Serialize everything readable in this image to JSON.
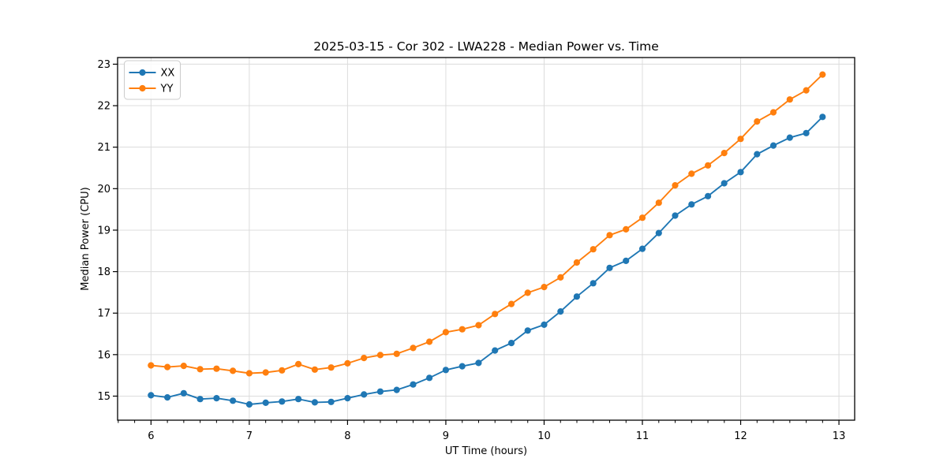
{
  "chart_data": {
    "type": "line",
    "title": "2025-03-15 - Cor 302 - LWA228 - Median Power vs. Time",
    "xlabel": "UT Time (hours)",
    "ylabel": "Median Power (CPU)",
    "x": [
      6.0,
      6.167,
      6.333,
      6.5,
      6.667,
      6.833,
      7.0,
      7.167,
      7.333,
      7.5,
      7.667,
      7.833,
      8.0,
      8.167,
      8.333,
      8.5,
      8.667,
      8.833,
      9.0,
      9.167,
      9.333,
      9.5,
      9.667,
      9.833,
      10.0,
      10.167,
      10.333,
      10.5,
      10.667,
      10.833,
      11.0,
      11.167,
      11.333,
      11.5,
      11.667,
      11.833,
      12.0,
      12.167,
      12.333,
      12.5,
      12.667,
      12.833
    ],
    "series": [
      {
        "name": "XX",
        "color": "#1f77b4",
        "values": [
          15.02,
          14.97,
          15.07,
          14.93,
          14.95,
          14.89,
          14.8,
          14.84,
          14.87,
          14.93,
          14.85,
          14.86,
          14.95,
          15.04,
          15.11,
          15.15,
          15.28,
          15.44,
          15.63,
          15.72,
          15.8,
          16.1,
          16.28,
          16.58,
          16.72,
          17.04,
          17.4,
          17.72,
          18.09,
          18.26,
          18.55,
          18.93,
          19.35,
          19.62,
          19.82,
          20.13,
          20.4,
          20.83,
          21.04,
          21.23,
          21.34,
          21.73
        ]
      },
      {
        "name": "YY",
        "color": "#ff7f0e",
        "values": [
          15.74,
          15.7,
          15.73,
          15.65,
          15.66,
          15.61,
          15.55,
          15.57,
          15.62,
          15.77,
          15.64,
          15.69,
          15.79,
          15.92,
          15.99,
          16.02,
          16.16,
          16.31,
          16.54,
          16.61,
          16.71,
          16.98,
          17.22,
          17.49,
          17.63,
          17.86,
          18.22,
          18.54,
          18.88,
          19.02,
          19.3,
          19.66,
          20.08,
          20.36,
          20.56,
          20.86,
          21.2,
          21.62,
          21.84,
          22.15,
          22.37,
          22.75
        ]
      }
    ],
    "xlim": [
      5.66,
      13.16
    ],
    "ylim": [
      14.42,
      23.16
    ],
    "xticks": [
      6,
      7,
      8,
      9,
      10,
      11,
      12,
      13
    ],
    "yticks": [
      15,
      16,
      17,
      18,
      19,
      20,
      21,
      22,
      23
    ],
    "x_minor_tick_step": 0.16667,
    "grid": true,
    "legend_position": "upper-left",
    "grid_color": "#dcdcdc",
    "spine_color": "#000000",
    "legend_border_color": "#cccccc"
  }
}
